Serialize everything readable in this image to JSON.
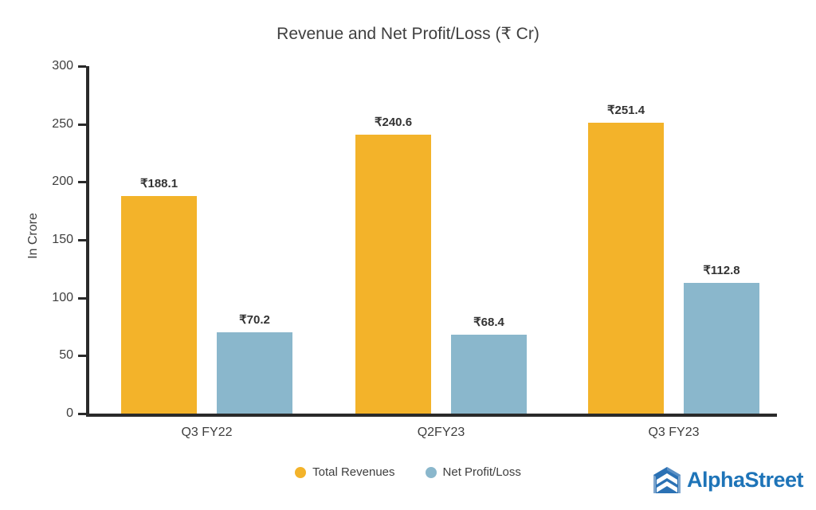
{
  "chart_data": {
    "type": "bar",
    "title": "Revenue and Net Profit/Loss (₹ Cr)",
    "ylabel": "In Crore",
    "xlabel": "",
    "categories": [
      "Q3 FY22",
      "Q2FY23",
      "Q3 FY23"
    ],
    "series": [
      {
        "name": "Total Revenues",
        "color": "#F3B32A",
        "values": [
          188.1,
          240.6,
          251.4
        ],
        "labels": [
          "₹188.1",
          "₹240.6",
          "₹251.4"
        ]
      },
      {
        "name": "Net Profit/Loss",
        "color": "#8AB7CC",
        "values": [
          70.2,
          68.4,
          112.8
        ],
        "labels": [
          "₹70.2",
          "₹68.4",
          "₹112.8"
        ]
      }
    ],
    "ylim": [
      0,
      300
    ],
    "yticks": [
      0,
      50,
      100,
      150,
      200,
      250,
      300
    ],
    "grid": false,
    "legend_position": "bottom"
  },
  "branding": {
    "logo_text": "AlphaStreet",
    "logo_color": "#1e74b8"
  }
}
